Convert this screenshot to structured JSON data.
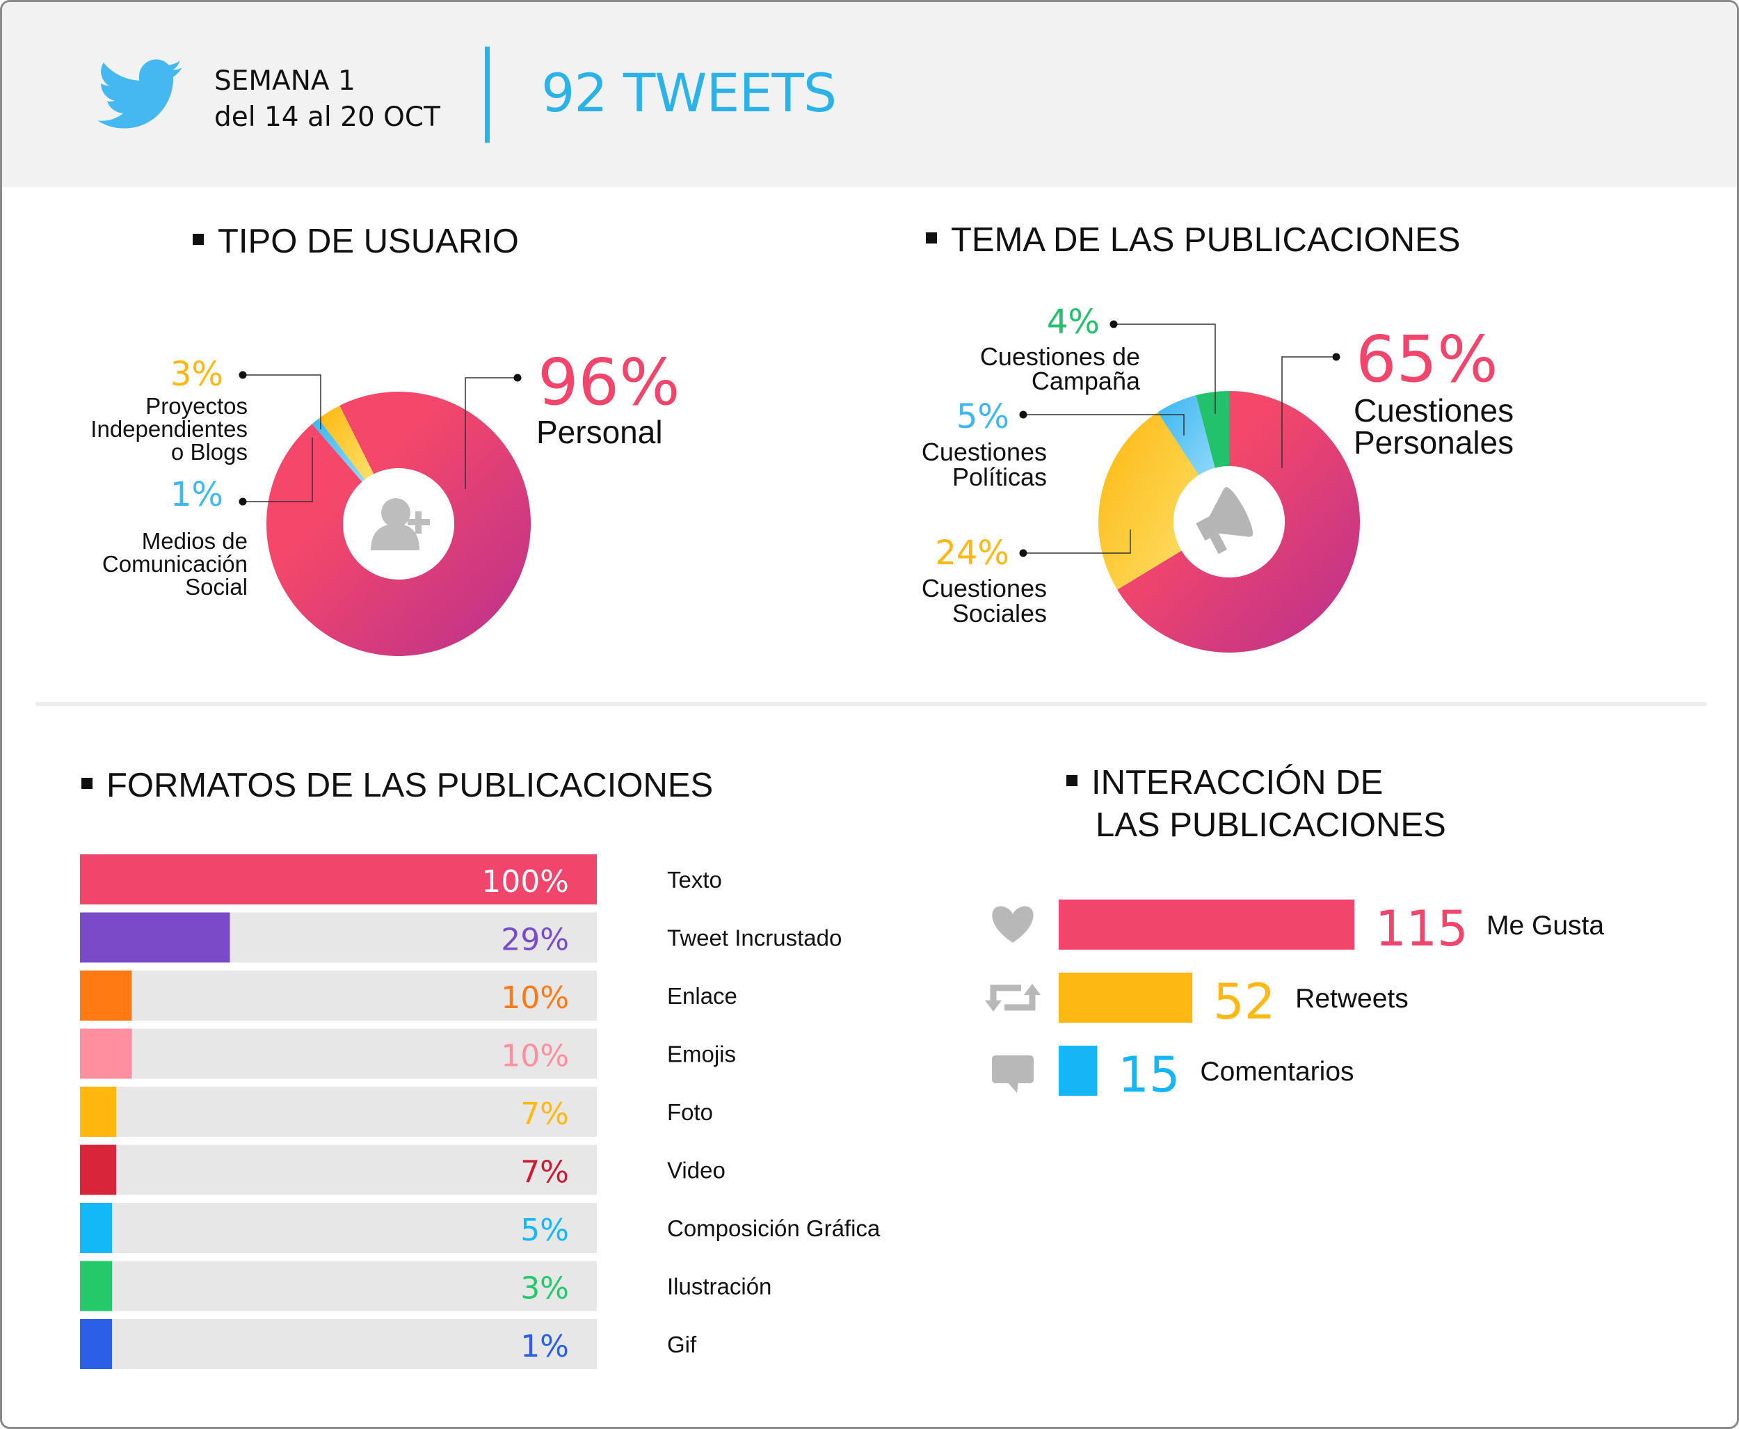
{
  "header": {
    "week": "SEMANA 1",
    "dates": "del 14 al 20 OCT",
    "tweets": "92 TWEETS"
  },
  "colors": {
    "pink": "#f2456c",
    "purple": "#c0368a",
    "yellow": "#fdb813",
    "blue": "#3fb8f0",
    "green": "#21c26b",
    "grey": "#b8b8b8"
  },
  "chart_data": [
    {
      "type": "pie",
      "title": "TIPO DE USUARIO",
      "slices": [
        {
          "pct": "96%",
          "value": 96,
          "label": "Personal",
          "color": "#f2456c"
        },
        {
          "pct": "3%",
          "value": 3,
          "label": "Proyectos Independientes o Blogs",
          "label_lines": [
            "Proyectos",
            "Independientes",
            "o Blogs"
          ],
          "color": "#fdb813"
        },
        {
          "pct": "1%",
          "value": 1,
          "label": "Medios de Comunicación Social",
          "label_lines": [
            "Medios de",
            "Comunicación",
            "Social"
          ],
          "color": "#3fb8f0"
        }
      ],
      "center_icon": "add-user-icon"
    },
    {
      "type": "pie",
      "title": "TEMA DE LAS PUBLICACIONES",
      "slices": [
        {
          "pct": "65%",
          "value": 65,
          "label": "Cuestiones Personales",
          "label_lines": [
            "Cuestiones",
            "Personales"
          ],
          "color": "#f2456c"
        },
        {
          "pct": "24%",
          "value": 24,
          "label": "Cuestiones Sociales",
          "label_lines": [
            "Cuestiones",
            "Sociales"
          ],
          "color": "#fdb813"
        },
        {
          "pct": "5%",
          "value": 5,
          "label": "Cuestiones Políticas",
          "label_lines": [
            "Cuestiones",
            "Políticas"
          ],
          "color": "#3fb8f0"
        },
        {
          "pct": "4%",
          "value": 4,
          "label": "Cuestiones de Campaña",
          "label_lines": [
            "Cuestiones de",
            "Campaña"
          ],
          "color": "#21c26b"
        }
      ],
      "center_icon": "megaphone-icon"
    },
    {
      "type": "bar",
      "title": "FORMATOS DE LAS PUBLICACIONES",
      "orientation": "horizontal",
      "xlim": [
        0,
        100
      ],
      "bars": [
        {
          "label": "Texto",
          "value": 100,
          "text": "100%",
          "color": "#f2456c",
          "text_color": "#ffffff"
        },
        {
          "label": "Tweet Incrustado",
          "value": 29,
          "text": "29%",
          "color": "#7a4bc8",
          "text_color": "#7a4bc8"
        },
        {
          "label": "Enlace",
          "value": 10,
          "text": "10%",
          "color": "#ff7a12",
          "text_color": "#ff7a12"
        },
        {
          "label": "Emojis",
          "value": 10,
          "text": "10%",
          "color": "#ff8f9f",
          "text_color": "#ff8f9f"
        },
        {
          "label": "Foto",
          "value": 7,
          "text": "7%",
          "color": "#ffb80f",
          "text_color": "#ffb80f"
        },
        {
          "label": "Video",
          "value": 7,
          "text": "7%",
          "color": "#d9253a",
          "text_color": "#c81e33"
        },
        {
          "label": "Composición Gráfica",
          "value": 5,
          "text": "5%",
          "color": "#13b8f7",
          "text_color": "#13b8f7"
        },
        {
          "label": "Ilustración",
          "value": 3,
          "text": "3%",
          "color": "#25c96a",
          "text_color": "#25c96a"
        },
        {
          "label": "Gif",
          "value": 1,
          "text": "1%",
          "color": "#2b60e6",
          "text_color": "#2b60e6"
        }
      ]
    },
    {
      "type": "bar",
      "title": "INTERACCIÓN DE LAS PUBLICACIONES",
      "title_lines": [
        "INTERACCIÓN DE",
        "LAS PUBLICACIONES"
      ],
      "orientation": "horizontal",
      "bars": [
        {
          "label": "Me Gusta",
          "value": 115,
          "text": "115",
          "color": "#f2456c",
          "icon": "heart-icon"
        },
        {
          "label": "Retweets",
          "value": 52,
          "text": "52",
          "color": "#fdb813",
          "icon": "retweet-icon"
        },
        {
          "label": "Comentarios",
          "value": 15,
          "text": "15",
          "color": "#16b6f5",
          "icon": "comment-icon"
        }
      ]
    }
  ]
}
